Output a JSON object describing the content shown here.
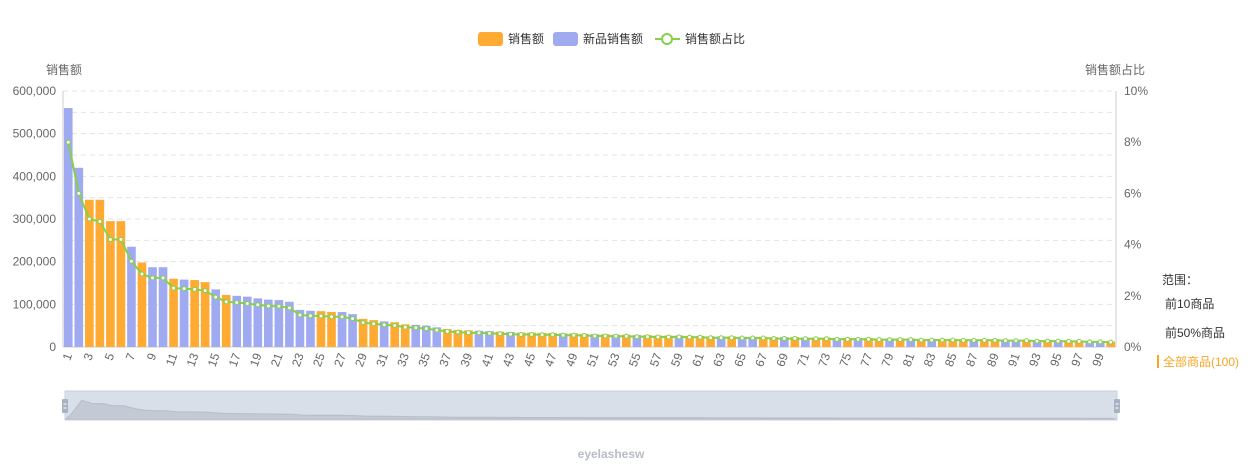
{
  "legend": {
    "items": [
      {
        "label": "销售额",
        "color": "#ffaa33",
        "kind": "bar"
      },
      {
        "label": "新品销售额",
        "color": "#a0aaf0",
        "kind": "bar"
      },
      {
        "label": "销售额占比",
        "color": "#86d04a",
        "kind": "line"
      }
    ]
  },
  "range_panel": {
    "title": "范围：",
    "options": [
      "前10商品",
      "前50%商品",
      "全部商品(100)"
    ],
    "selected_index": 2,
    "selected_color": "#f5a623"
  },
  "footer": {
    "text": "eyelashesw"
  },
  "colors": {
    "orange": "#ffaa33",
    "blue": "#a0aaf0",
    "line": "#86d04a",
    "grid": "#e3e3e3",
    "axis_text": "#666666"
  },
  "chart_data": {
    "type": "bar",
    "ylabel": "销售额",
    "y2label": "销售额占比",
    "ylim": [
      0,
      600000
    ],
    "y2lim": [
      0,
      10
    ],
    "yticks": [
      "0",
      "100,000",
      "200,000",
      "300,000",
      "400,000",
      "500,000",
      "600,000"
    ],
    "y2ticks": [
      "0%",
      "2%",
      "4%",
      "6%",
      "8%",
      "10%"
    ],
    "xtick_labels": [
      "1",
      "3",
      "5",
      "7",
      "9",
      "11",
      "13",
      "15",
      "17",
      "19",
      "21",
      "23",
      "25",
      "27",
      "29",
      "31",
      "33",
      "35",
      "37",
      "39",
      "41",
      "43",
      "45",
      "47",
      "49",
      "51",
      "53",
      "55",
      "57",
      "59",
      "61",
      "63",
      "65",
      "67",
      "69",
      "71",
      "73",
      "75",
      "77",
      "79",
      "81",
      "83",
      "85",
      "87",
      "89",
      "91",
      "93",
      "95",
      "97",
      "99"
    ],
    "categories": [
      1,
      2,
      3,
      4,
      5,
      6,
      7,
      8,
      9,
      10,
      11,
      12,
      13,
      14,
      15,
      16,
      17,
      18,
      19,
      20,
      21,
      22,
      23,
      24,
      25,
      26,
      27,
      28,
      29,
      30,
      31,
      32,
      33,
      34,
      35,
      36,
      37,
      38,
      39,
      40,
      41,
      42,
      43,
      45,
      44,
      46,
      47,
      48,
      49,
      50,
      51,
      52,
      53,
      54,
      55,
      56,
      57,
      58,
      59,
      60,
      61,
      62,
      63,
      64,
      65,
      66,
      67,
      68,
      69,
      70,
      71,
      72,
      73,
      74,
      75,
      76,
      77,
      78,
      79,
      80,
      81,
      82,
      83,
      84,
      85,
      86,
      87,
      88,
      89,
      90,
      91,
      92,
      93,
      94,
      95,
      96,
      97,
      98,
      99,
      100
    ],
    "values": [
      560000,
      420000,
      345000,
      345000,
      295000,
      295000,
      235000,
      198000,
      187000,
      187000,
      160000,
      158000,
      157000,
      152000,
      135000,
      122000,
      120000,
      118000,
      114000,
      111000,
      110000,
      106000,
      87000,
      85000,
      84000,
      82000,
      82000,
      77000,
      66000,
      63000,
      60000,
      58000,
      53000,
      52000,
      50000,
      46000,
      42000,
      40000,
      39000,
      38000,
      37000,
      36000,
      35000,
      34000,
      34000,
      33000,
      33000,
      32000,
      32000,
      31000,
      30000,
      30000,
      29000,
      29000,
      28000,
      28000,
      27000,
      27000,
      27000,
      26000,
      26000,
      25000,
      25000,
      25000,
      24000,
      24000,
      24000,
      23000,
      23000,
      23000,
      22000,
      22000,
      22000,
      21000,
      21000,
      21000,
      21000,
      20000,
      20000,
      20000,
      20000,
      19000,
      19000,
      19000,
      19000,
      18000,
      18000,
      18000,
      18000,
      17000,
      17000,
      17000,
      16000,
      16000,
      16000,
      15000,
      15000,
      14000,
      14000,
      13000
    ],
    "is_new": [
      true,
      true,
      false,
      false,
      false,
      false,
      true,
      false,
      true,
      true,
      false,
      true,
      false,
      false,
      true,
      false,
      true,
      true,
      true,
      true,
      true,
      true,
      true,
      true,
      false,
      false,
      true,
      true,
      false,
      false,
      true,
      false,
      false,
      true,
      true,
      true,
      false,
      false,
      false,
      true,
      true,
      false,
      true,
      false,
      false,
      false,
      false,
      true,
      false,
      false,
      true,
      false,
      true,
      false,
      true,
      false,
      false,
      false,
      true,
      false,
      false,
      false,
      true,
      false,
      true,
      true,
      false,
      false,
      true,
      false,
      true,
      false,
      false,
      true,
      false,
      true,
      false,
      false,
      true,
      false,
      true,
      false,
      true,
      false,
      false,
      false,
      true,
      false,
      false,
      true,
      true,
      false,
      true,
      false,
      true,
      false,
      false,
      true,
      true,
      false
    ],
    "ratio_percent": [
      8.0,
      6.0,
      5.0,
      4.9,
      4.2,
      4.2,
      3.35,
      2.85,
      2.7,
      2.7,
      2.3,
      2.28,
      2.25,
      2.2,
      1.95,
      1.77,
      1.74,
      1.7,
      1.65,
      1.6,
      1.59,
      1.53,
      1.25,
      1.22,
      1.21,
      1.18,
      1.18,
      1.11,
      0.95,
      0.91,
      0.87,
      0.84,
      0.77,
      0.75,
      0.72,
      0.66,
      0.61,
      0.58,
      0.56,
      0.55,
      0.53,
      0.52,
      0.5,
      0.49,
      0.49,
      0.48,
      0.48,
      0.46,
      0.46,
      0.45,
      0.43,
      0.43,
      0.42,
      0.42,
      0.4,
      0.4,
      0.39,
      0.39,
      0.39,
      0.38,
      0.38,
      0.36,
      0.36,
      0.36,
      0.35,
      0.35,
      0.35,
      0.33,
      0.33,
      0.33,
      0.32,
      0.32,
      0.32,
      0.3,
      0.3,
      0.3,
      0.3,
      0.29,
      0.29,
      0.29,
      0.29,
      0.27,
      0.27,
      0.27,
      0.27,
      0.26,
      0.26,
      0.26,
      0.26,
      0.25,
      0.25,
      0.25,
      0.23,
      0.23,
      0.23,
      0.22,
      0.22,
      0.2,
      0.2,
      0.19
    ],
    "grid": true,
    "legend_position": "top-center"
  },
  "zoom_slider": {
    "start_percent": 0,
    "end_percent": 100
  }
}
